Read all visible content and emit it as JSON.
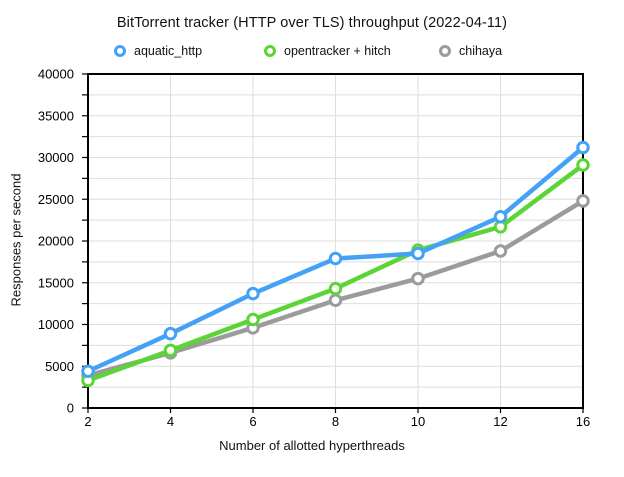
{
  "chart_data": {
    "type": "line",
    "title": "BitTorrent tracker (HTTP over TLS) throughput (2022-04-11)",
    "xlabel": "Number of allotted hyperthreads",
    "ylabel": "Responses per second",
    "categories": [
      2,
      4,
      6,
      8,
      10,
      12,
      16
    ],
    "series": [
      {
        "name": "aquatic_http",
        "color": "#44A2F6",
        "values": [
          4400,
          8900,
          13700,
          17900,
          18500,
          22900,
          31200
        ]
      },
      {
        "name": "opentracker + hitch",
        "color": "#5BD535",
        "values": [
          3300,
          6900,
          10600,
          14300,
          18900,
          21700,
          29100
        ]
      },
      {
        "name": "chihaya",
        "color": "#9B9B9B",
        "values": [
          3900,
          6600,
          9600,
          12900,
          15500,
          18800,
          24800
        ]
      }
    ],
    "ylim": [
      0,
      40000
    ],
    "y_major_step": 5000,
    "y_minor_step": 2500,
    "x_tick_labels": [
      "2",
      "4",
      "6",
      "8",
      "10",
      "12",
      "16"
    ],
    "grid": true,
    "legend_position": "top",
    "marker": "ring",
    "axis_color": "#000000",
    "grid_color": "#DEDEDE",
    "background": "#FFFFFF"
  }
}
